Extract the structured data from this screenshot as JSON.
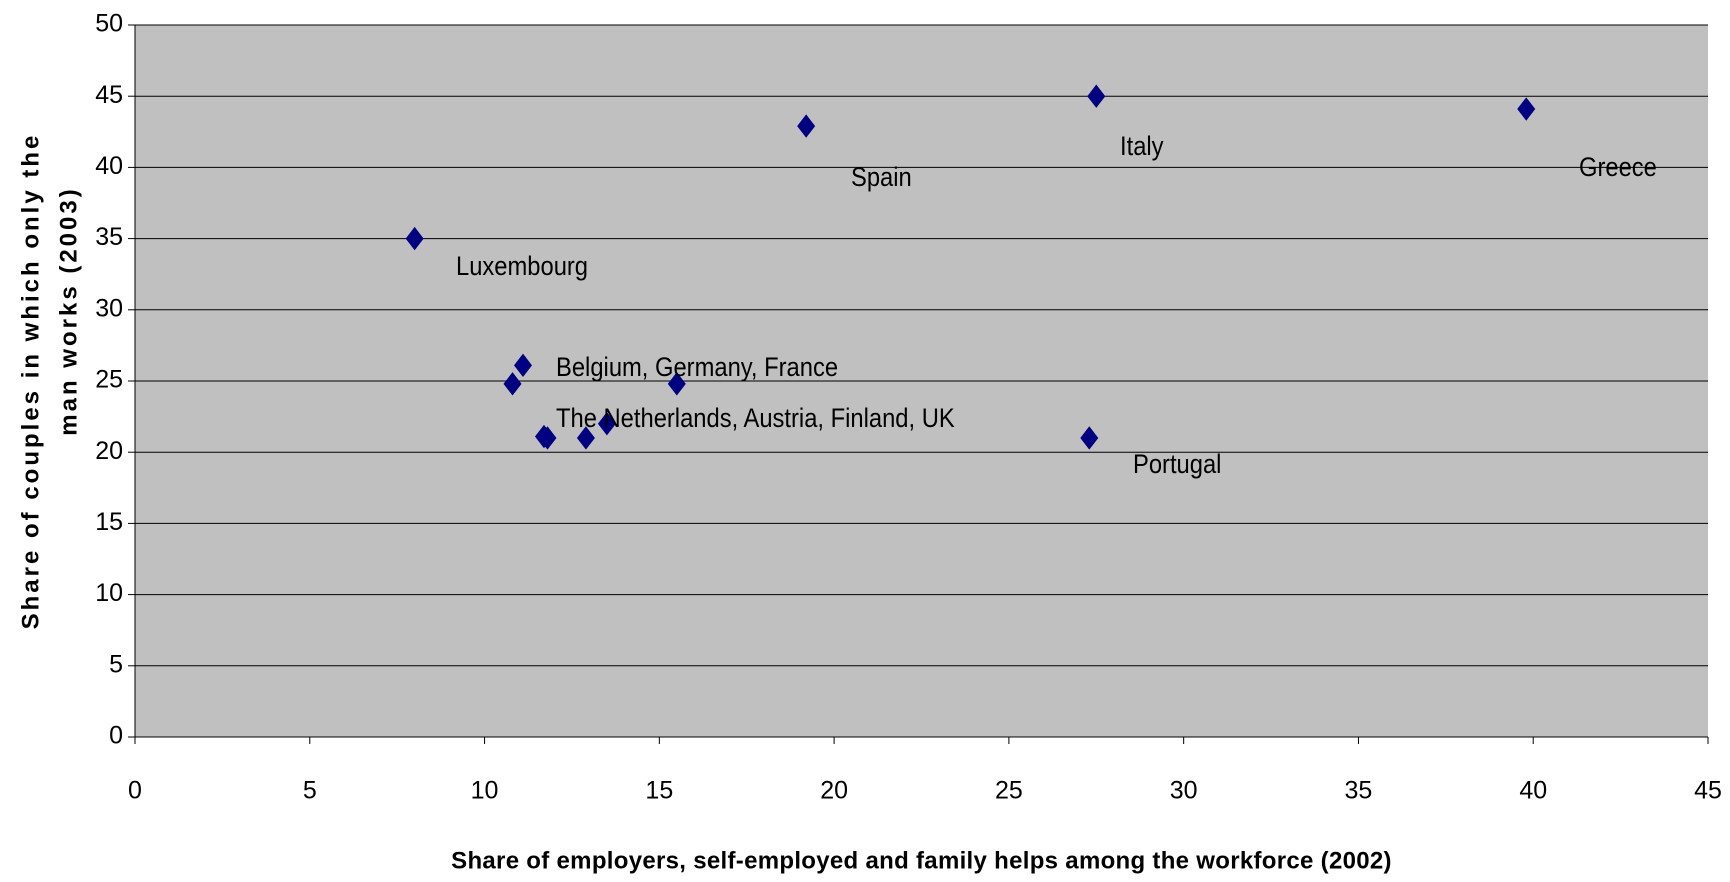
{
  "chart_data": {
    "type": "scatter",
    "x_label": "Share of employers, self-employed and family helps among the workforce (2002)",
    "y_label": [
      "Share of couples in which only the",
      "man works (2003)"
    ],
    "x": [
      8.0,
      19.2,
      27.5,
      39.8,
      27.3,
      11.1,
      10.8,
      15.5,
      11.7,
      11.8,
      12.9,
      13.5
    ],
    "values": [
      35.0,
      42.9,
      45.0,
      44.1,
      21.0,
      26.1,
      24.8,
      24.8,
      21.1,
      21.0,
      21.0,
      22.0
    ],
    "color": "#000080",
    "background": "#c0c0c0",
    "grid": true,
    "xlim": [
      0,
      45
    ],
    "xticks": [
      0,
      5,
      10,
      15,
      20,
      25,
      30,
      35,
      40,
      45
    ],
    "ylim": [
      0,
      50
    ],
    "yticks": [
      0,
      5,
      10,
      15,
      20,
      25,
      30,
      35,
      40,
      45,
      50
    ],
    "annotations": [
      "Luxembourg",
      "Spain",
      "Italy",
      "Greece",
      "Belgium, Germany, France",
      "The Netherlands, Austria, Finland, UK",
      "Portugal"
    ]
  }
}
